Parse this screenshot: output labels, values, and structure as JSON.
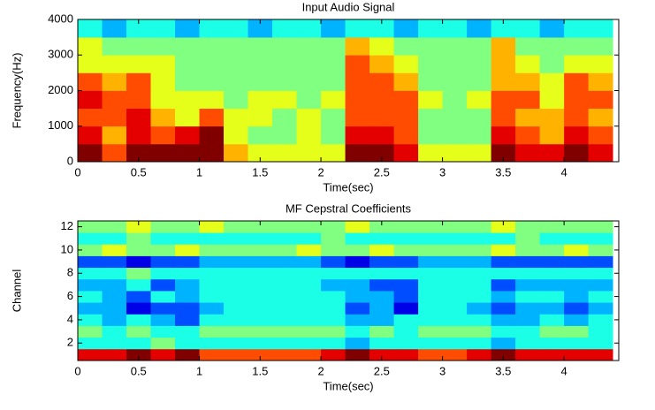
{
  "chart_data": [
    {
      "type": "heatmap",
      "title": "Input Audio Signal",
      "x_label": "Time(sec)",
      "y_label": "Frequency(Hz)",
      "colormap": "jet",
      "clim": [
        0,
        10
      ],
      "xbins": [
        0,
        0.2,
        0.4,
        0.6,
        0.8,
        1.0,
        1.2,
        1.4,
        1.6,
        1.8,
        2.0,
        2.2,
        2.4,
        2.6,
        2.8,
        3.0,
        3.2,
        3.4,
        3.6,
        3.8,
        4.0,
        4.2,
        4.4
      ],
      "ybins": [
        0,
        500,
        1000,
        1500,
        2000,
        2500,
        3000,
        3500,
        4000
      ],
      "z": [
        [
          10,
          8,
          10,
          10,
          10,
          10,
          7,
          6,
          6,
          6,
          6,
          10,
          10,
          9,
          6,
          6,
          6,
          10,
          9,
          9,
          10,
          9
        ],
        [
          9,
          7,
          9,
          8,
          9,
          10,
          6,
          5,
          5,
          6,
          5,
          9,
          9,
          8,
          5,
          5,
          5,
          9,
          8,
          7,
          9,
          8
        ],
        [
          8,
          8,
          9,
          7,
          6,
          8,
          6,
          6,
          5,
          6,
          5,
          8,
          8,
          8,
          5,
          5,
          5,
          8,
          7,
          7,
          8,
          7
        ],
        [
          9,
          8,
          8,
          6,
          6,
          6,
          5,
          6,
          6,
          5,
          6,
          8,
          8,
          8,
          6,
          5,
          6,
          8,
          8,
          6,
          8,
          8
        ],
        [
          8,
          7,
          8,
          6,
          5,
          5,
          5,
          5,
          5,
          5,
          5,
          8,
          8,
          7,
          5,
          5,
          5,
          7,
          7,
          6,
          8,
          7
        ],
        [
          6,
          6,
          6,
          6,
          5,
          5,
          5,
          5,
          5,
          5,
          5,
          8,
          7,
          6,
          5,
          5,
          5,
          7,
          6,
          5,
          6,
          6
        ],
        [
          6,
          5,
          5,
          5,
          5,
          5,
          5,
          5,
          5,
          5,
          5,
          7,
          6,
          5,
          5,
          5,
          5,
          7,
          5,
          5,
          5,
          5
        ],
        [
          4,
          3,
          4,
          4,
          3,
          4,
          4,
          3,
          4,
          4,
          3,
          4,
          4,
          3,
          4,
          4,
          3,
          4,
          4,
          3,
          4,
          4
        ]
      ],
      "xlim": [
        0,
        4.45
      ],
      "ylim": [
        0,
        4000
      ],
      "xticks": [
        0,
        0.5,
        1,
        1.5,
        2,
        2.5,
        3,
        3.5,
        4
      ],
      "yticks": [
        0,
        1000,
        2000,
        3000,
        4000
      ]
    },
    {
      "type": "heatmap",
      "title": "MF Cepstral Coefficients",
      "x_label": "Time(sec)",
      "y_label": "Channel",
      "colormap": "jet",
      "clim": [
        0,
        10
      ],
      "xbins": [
        0,
        0.2,
        0.4,
        0.6,
        0.8,
        1.0,
        1.2,
        1.4,
        1.6,
        1.8,
        2.0,
        2.2,
        2.4,
        2.6,
        2.8,
        3.0,
        3.2,
        3.4,
        3.6,
        3.8,
        4.0,
        4.2,
        4.4
      ],
      "ybins": [
        0.5,
        1.5,
        2.5,
        3.5,
        4.5,
        5.5,
        6.5,
        7.5,
        8.5,
        9.5,
        10.5,
        11.5,
        12.5
      ],
      "z": [
        [
          9,
          9,
          10,
          9,
          10,
          8,
          8,
          8,
          8,
          8,
          9,
          10,
          9,
          9,
          8,
          8,
          9,
          10,
          9,
          9,
          9,
          9
        ],
        [
          4,
          4,
          4,
          5,
          4,
          4,
          4,
          4,
          4,
          4,
          4,
          3,
          4,
          4,
          4,
          4,
          4,
          3,
          4,
          4,
          4,
          4
        ],
        [
          5,
          4,
          5,
          4,
          4,
          5,
          5,
          5,
          5,
          5,
          5,
          4,
          5,
          4,
          5,
          5,
          5,
          4,
          4,
          5,
          5,
          4
        ],
        [
          4,
          3,
          4,
          3,
          2,
          4,
          4,
          4,
          4,
          4,
          4,
          3,
          3,
          4,
          4,
          4,
          4,
          3,
          3,
          4,
          3,
          4
        ],
        [
          3,
          3,
          1,
          2,
          2,
          3,
          4,
          4,
          4,
          4,
          4,
          2,
          3,
          1,
          4,
          4,
          3,
          2,
          3,
          3,
          2,
          3
        ],
        [
          4,
          3,
          2,
          4,
          3,
          4,
          4,
          4,
          4,
          4,
          4,
          3,
          3,
          2,
          4,
          4,
          4,
          3,
          4,
          4,
          3,
          4
        ],
        [
          3,
          3,
          4,
          2,
          3,
          4,
          4,
          4,
          4,
          4,
          3,
          3,
          2,
          2,
          4,
          4,
          4,
          2,
          3,
          3,
          3,
          3
        ],
        [
          4,
          4,
          5,
          4,
          4,
          4,
          4,
          4,
          4,
          4,
          4,
          4,
          4,
          4,
          4,
          4,
          4,
          4,
          4,
          4,
          4,
          4
        ],
        [
          2,
          2,
          1,
          2,
          2,
          3,
          3,
          3,
          3,
          3,
          2,
          1,
          2,
          2,
          3,
          3,
          3,
          2,
          2,
          2,
          2,
          2
        ],
        [
          5,
          6,
          5,
          5,
          6,
          5,
          5,
          5,
          5,
          6,
          5,
          5,
          6,
          5,
          5,
          5,
          5,
          6,
          5,
          5,
          6,
          5
        ],
        [
          4,
          4,
          5,
          4,
          4,
          4,
          4,
          4,
          4,
          4,
          5,
          4,
          4,
          4,
          4,
          4,
          4,
          4,
          5,
          4,
          4,
          4
        ],
        [
          5,
          5,
          6,
          5,
          5,
          6,
          5,
          5,
          5,
          5,
          5,
          6,
          5,
          5,
          5,
          5,
          5,
          6,
          5,
          5,
          5,
          5
        ]
      ],
      "xlim": [
        0,
        4.45
      ],
      "ylim": [
        0.5,
        12.5
      ],
      "xticks": [
        0,
        0.5,
        1,
        1.5,
        2,
        2.5,
        3,
        3.5,
        4
      ],
      "yticks": [
        2,
        4,
        6,
        8,
        10,
        12
      ]
    }
  ]
}
